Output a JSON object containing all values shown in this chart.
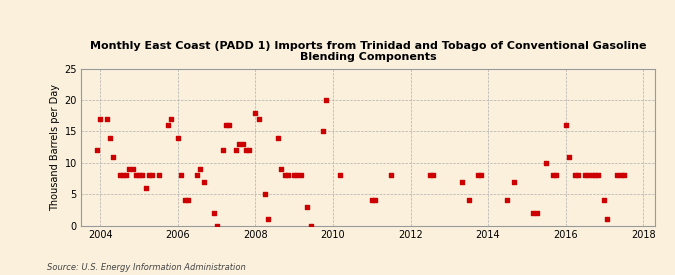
{
  "title": "Monthly East Coast (PADD 1) Imports from Trinidad and Tobago of Conventional Gasoline\nBlending Components",
  "ylabel": "Thousand Barrels per Day",
  "source": "Source: U.S. Energy Information Administration",
  "background_color": "#faf0dc",
  "marker_color": "#cc0000",
  "xlim": [
    2003.5,
    2018.3
  ],
  "ylim": [
    0,
    25
  ],
  "yticks": [
    0,
    5,
    10,
    15,
    20,
    25
  ],
  "xticks": [
    2004,
    2006,
    2008,
    2010,
    2012,
    2014,
    2016,
    2018
  ],
  "data_points": [
    [
      2003.92,
      12
    ],
    [
      2004.0,
      17
    ],
    [
      2004.17,
      17
    ],
    [
      2004.25,
      14
    ],
    [
      2004.33,
      11
    ],
    [
      2004.5,
      8
    ],
    [
      2004.58,
      8
    ],
    [
      2004.67,
      8
    ],
    [
      2004.75,
      9
    ],
    [
      2004.83,
      9
    ],
    [
      2004.92,
      8
    ],
    [
      2005.0,
      8
    ],
    [
      2005.08,
      8
    ],
    [
      2005.17,
      6
    ],
    [
      2005.25,
      8
    ],
    [
      2005.33,
      8
    ],
    [
      2005.5,
      8
    ],
    [
      2005.75,
      16
    ],
    [
      2005.83,
      17
    ],
    [
      2006.0,
      14
    ],
    [
      2006.08,
      8
    ],
    [
      2006.17,
      4
    ],
    [
      2006.25,
      4
    ],
    [
      2006.5,
      8
    ],
    [
      2006.58,
      9
    ],
    [
      2006.67,
      7
    ],
    [
      2006.92,
      2
    ],
    [
      2007.0,
      0
    ],
    [
      2007.17,
      12
    ],
    [
      2007.25,
      16
    ],
    [
      2007.33,
      16
    ],
    [
      2007.5,
      12
    ],
    [
      2007.58,
      13
    ],
    [
      2007.67,
      13
    ],
    [
      2007.75,
      12
    ],
    [
      2007.83,
      12
    ],
    [
      2008.0,
      18
    ],
    [
      2008.08,
      17
    ],
    [
      2008.25,
      5
    ],
    [
      2008.33,
      1
    ],
    [
      2008.58,
      14
    ],
    [
      2008.67,
      9
    ],
    [
      2008.75,
      8
    ],
    [
      2008.83,
      8
    ],
    [
      2009.0,
      8
    ],
    [
      2009.08,
      8
    ],
    [
      2009.17,
      8
    ],
    [
      2009.33,
      3
    ],
    [
      2009.42,
      0
    ],
    [
      2009.75,
      15
    ],
    [
      2009.83,
      20
    ],
    [
      2010.17,
      8
    ],
    [
      2011.0,
      4
    ],
    [
      2011.08,
      4
    ],
    [
      2011.5,
      8
    ],
    [
      2012.5,
      8
    ],
    [
      2012.58,
      8
    ],
    [
      2013.33,
      7
    ],
    [
      2013.5,
      4
    ],
    [
      2013.75,
      8
    ],
    [
      2013.83,
      8
    ],
    [
      2014.5,
      4
    ],
    [
      2014.67,
      7
    ],
    [
      2015.17,
      2
    ],
    [
      2015.25,
      2
    ],
    [
      2015.5,
      10
    ],
    [
      2015.67,
      8
    ],
    [
      2015.75,
      8
    ],
    [
      2016.0,
      16
    ],
    [
      2016.08,
      11
    ],
    [
      2016.25,
      8
    ],
    [
      2016.33,
      8
    ],
    [
      2016.5,
      8
    ],
    [
      2016.58,
      8
    ],
    [
      2016.67,
      8
    ],
    [
      2016.75,
      8
    ],
    [
      2016.83,
      8
    ],
    [
      2017.0,
      4
    ],
    [
      2017.08,
      1
    ],
    [
      2017.33,
      8
    ],
    [
      2017.42,
      8
    ],
    [
      2017.5,
      8
    ]
  ]
}
